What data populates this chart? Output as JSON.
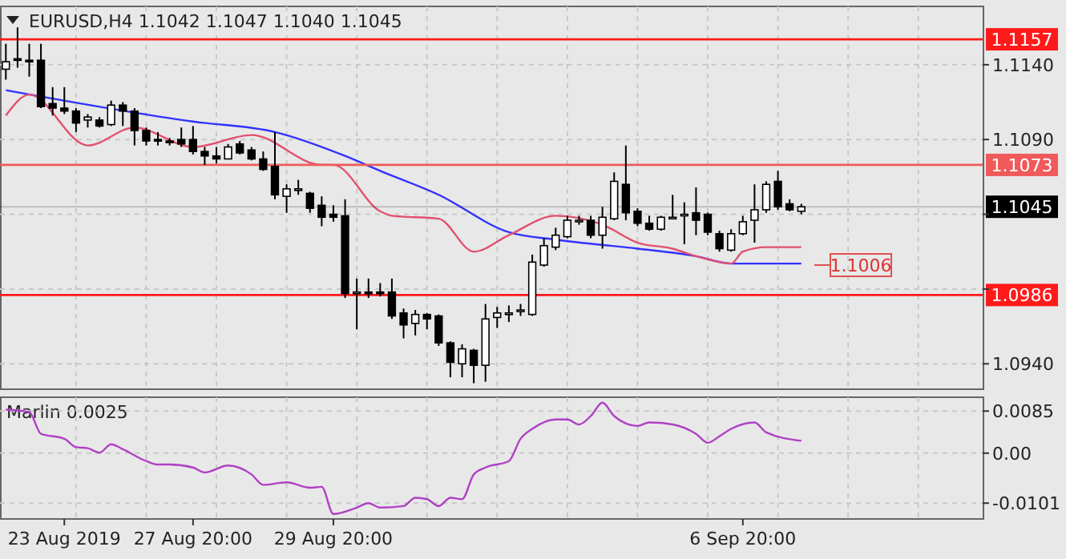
{
  "chart_data": [
    {
      "type": "candlestick",
      "title": "EURUSD,H4 1.1042 1.1047 1.1040 1.1045",
      "tick_labels": "y",
      "grid": true,
      "categories": [
        null,
        null,
        null,
        null,
        null,
        null,
        null,
        null,
        null,
        null,
        null,
        null,
        null,
        null,
        null,
        null,
        null,
        null,
        null,
        null,
        null,
        null,
        null,
        null,
        null,
        null,
        null,
        null,
        null,
        null,
        null,
        null,
        null,
        null,
        null,
        null,
        null,
        null,
        null,
        null,
        null,
        null,
        null,
        null,
        null,
        null,
        null,
        null,
        null,
        null,
        null,
        null,
        null,
        null,
        null,
        null,
        null,
        null,
        null,
        null,
        null,
        null,
        null,
        null,
        null,
        null,
        null,
        null,
        null,
        null,
        null,
        null,
        null,
        null,
        null,
        null,
        null,
        null,
        null,
        null,
        null,
        null,
        null,
        null
      ],
      "ylim": [
        1.0923,
        1.1179
      ],
      "yticks": [
        {
          "value": 1.094,
          "label": "1.0940"
        },
        {
          "value": 1.099,
          "label": null
        },
        {
          "value": 1.104,
          "label": null
        },
        {
          "value": 1.109,
          "label": "1.1090"
        },
        {
          "value": 1.114,
          "label": "1.1140"
        }
      ],
      "ohlc": [
        [
          1.1137,
          1.1154,
          1.113,
          1.1142
        ],
        [
          1.1144,
          1.1165,
          1.1138,
          1.1143
        ],
        [
          1.1143,
          1.1154,
          1.1132,
          1.1142
        ],
        [
          1.1143,
          1.1154,
          1.1111,
          1.1112
        ],
        [
          1.1114,
          1.1125,
          1.1106,
          1.1111
        ],
        [
          1.1111,
          1.1125,
          1.1107,
          1.1109
        ],
        [
          1.1109,
          1.1111,
          1.1095,
          1.1101
        ],
        [
          1.1103,
          1.1107,
          1.1098,
          1.1105
        ],
        [
          1.1103,
          1.1105,
          1.1098,
          1.1099
        ],
        [
          1.11,
          1.1116,
          1.1099,
          1.1113
        ],
        [
          1.1113,
          1.1115,
          1.1099,
          1.1109
        ],
        [
          1.1109,
          1.1111,
          1.1086,
          1.1096
        ],
        [
          1.1096,
          1.1098,
          1.1086,
          1.1089
        ],
        [
          1.109,
          1.1095,
          1.1086,
          1.1089
        ],
        [
          1.1089,
          1.1091,
          1.1086,
          1.1088
        ],
        [
          1.109,
          1.1098,
          1.1085,
          1.1087
        ],
        [
          1.109,
          1.1099,
          1.108,
          1.1082
        ],
        [
          1.1082,
          1.1085,
          1.1073,
          1.1079
        ],
        [
          1.1079,
          1.1085,
          1.1074,
          1.1077
        ],
        [
          1.1077,
          1.1087,
          1.1077,
          1.1085
        ],
        [
          1.1087,
          1.1089,
          1.108,
          1.1081
        ],
        [
          1.1083,
          1.1085,
          1.1076,
          1.1077
        ],
        [
          1.1077,
          1.1082,
          1.1069,
          1.107
        ],
        [
          1.1072,
          1.1095,
          1.105,
          1.1053
        ],
        [
          1.1052,
          1.106,
          1.1041,
          1.1057
        ],
        [
          1.1057,
          1.1063,
          1.1053,
          1.1057
        ],
        [
          1.1054,
          1.1055,
          1.1041,
          1.1044
        ],
        [
          1.1046,
          1.1052,
          1.1032,
          1.1038
        ],
        [
          1.104,
          1.1046,
          1.1035,
          1.1038
        ],
        [
          1.1039,
          1.105,
          1.0984,
          1.0987
        ],
        [
          1.0988,
          1.0997,
          1.0963,
          1.0988
        ],
        [
          1.0988,
          1.0997,
          1.0984,
          1.0987
        ],
        [
          1.0988,
          1.0994,
          1.0985,
          1.0987
        ],
        [
          1.0988,
          1.0997,
          1.097,
          1.0972
        ],
        [
          1.0974,
          1.0977,
          1.0957,
          1.0966
        ],
        [
          1.0967,
          1.0976,
          1.0959,
          1.0973
        ],
        [
          1.0973,
          1.0974,
          1.0963,
          1.097
        ],
        [
          1.0972,
          1.0973,
          1.0952,
          1.0954
        ],
        [
          1.0954,
          1.0955,
          1.0931,
          1.0941
        ],
        [
          1.094,
          1.0953,
          1.0931,
          1.095
        ],
        [
          1.0949,
          1.095,
          1.0927,
          1.0939
        ],
        [
          1.0939,
          1.098,
          1.0928,
          1.097
        ],
        [
          1.0971,
          1.0978,
          1.0964,
          1.0974
        ],
        [
          1.0974,
          1.0979,
          1.0968,
          1.0974
        ],
        [
          1.0975,
          1.098,
          1.0972,
          1.0976
        ],
        [
          1.0973,
          1.1013,
          1.0972,
          1.1008
        ],
        [
          1.1006,
          1.1024,
          1.1005,
          1.1019
        ],
        [
          1.1018,
          1.1031,
          1.1016,
          1.1026
        ],
        [
          1.1025,
          1.1039,
          1.1024,
          1.1036
        ],
        [
          1.1035,
          1.1039,
          1.1033,
          1.1036
        ],
        [
          1.1036,
          1.1039,
          1.1024,
          1.1026
        ],
        [
          1.1026,
          1.1045,
          1.1017,
          1.1038
        ],
        [
          1.1037,
          1.1068,
          1.1036,
          1.1062
        ],
        [
          1.106,
          1.1086,
          1.1036,
          1.1041
        ],
        [
          1.1042,
          1.1044,
          1.1032,
          1.1034
        ],
        [
          1.1034,
          1.1039,
          1.1029,
          1.103
        ],
        [
          1.103,
          1.1039,
          1.1029,
          1.1038
        ],
        [
          1.1038,
          1.1053,
          1.1037,
          1.1038
        ],
        [
          1.104,
          1.1048,
          1.102,
          1.104
        ],
        [
          1.1041,
          1.1058,
          1.1026,
          1.1036
        ],
        [
          1.104,
          1.1041,
          1.1026,
          1.1028
        ],
        [
          1.1027,
          1.1029,
          1.1015,
          1.1017
        ],
        [
          1.1016,
          1.103,
          1.1015,
          1.1027
        ],
        [
          1.1027,
          1.1039,
          1.1026,
          1.1035
        ],
        [
          1.1036,
          1.106,
          1.1021,
          1.1043
        ],
        [
          1.1043,
          1.1062,
          1.1041,
          1.106
        ],
        [
          1.1062,
          1.1069,
          1.1043,
          1.1045
        ],
        [
          1.1047,
          1.105,
          1.1042,
          1.1043
        ],
        [
          1.1042,
          1.1047,
          1.104,
          1.1045
        ],
        null,
        null,
        null,
        null,
        null,
        null,
        null,
        null,
        null,
        null,
        null,
        null,
        null,
        null,
        null
      ],
      "series": [
        {
          "type": "line",
          "color": "#3232ff",
          "values": [
            1.1123,
            null,
            null,
            null,
            null,
            null,
            null,
            null,
            null,
            null,
            null,
            null,
            null,
            null,
            null,
            null,
            1.1102,
            null,
            null,
            null,
            null,
            null,
            null,
            1.1095,
            null,
            null,
            null,
            null,
            null,
            1.1079,
            null,
            null,
            1.1069,
            null,
            null,
            null,
            null,
            1.1053,
            null,
            null,
            null,
            null,
            null,
            1.1028,
            null,
            null,
            null,
            1.1023,
            null,
            null,
            null,
            null,
            null,
            null,
            1.1017,
            null,
            null,
            null,
            null,
            1.1012,
            null,
            null,
            1.1007,
            null,
            null,
            null,
            null,
            null,
            1.1007,
            null,
            null,
            null,
            null,
            null,
            null,
            null,
            null,
            null,
            null,
            null,
            null,
            null,
            null,
            null
          ]
        },
        {
          "type": "line",
          "color": "#e2506e",
          "values": [
            1.1106,
            null,
            1.112,
            null,
            null,
            null,
            null,
            1.1086,
            null,
            null,
            null,
            1.1098,
            null,
            null,
            null,
            null,
            1.1085,
            null,
            null,
            null,
            null,
            1.1093,
            null,
            null,
            null,
            null,
            null,
            1.1073,
            1.1073,
            null,
            null,
            null,
            1.1042,
            1.1039,
            null,
            null,
            null,
            1.1037,
            null,
            null,
            1.1015,
            null,
            null,
            1.1026,
            null,
            null,
            null,
            1.1039,
            null,
            null,
            null,
            1.1033,
            null,
            null,
            1.1021,
            null,
            null,
            1.1017,
            null,
            1.1012,
            null,
            null,
            1.1007,
            1.1015,
            null,
            1.1018,
            null,
            null,
            1.1018,
            null,
            null,
            null,
            null,
            null,
            null,
            null,
            null,
            null,
            null,
            null,
            null,
            null,
            null,
            null
          ]
        }
      ],
      "ref_lines": [
        {
          "axis": "y",
          "value": 1.1157,
          "label": "1.1157",
          "color": "#ff1a1a"
        },
        {
          "axis": "y",
          "value": 1.1073,
          "label": "1.1073",
          "color": "#f05a5a"
        },
        {
          "axis": "y",
          "value": 1.0986,
          "label": "1.0986",
          "color": "#ff1a1a"
        },
        {
          "axis": "y",
          "value": 1.1045,
          "label": "1.1045",
          "color": "#000000"
        }
      ],
      "annotations": [
        {
          "text": "1.1006",
          "y": 1.1006
        }
      ]
    },
    {
      "type": "line",
      "title": "Marlin 0.0025",
      "grid": true,
      "categories": [
        null,
        null,
        null,
        null,
        null,
        "23 Aug 2019",
        null,
        null,
        null,
        null,
        null,
        null,
        null,
        null,
        null,
        null,
        "27 Aug 20:00",
        null,
        null,
        null,
        null,
        null,
        null,
        null,
        null,
        null,
        null,
        null,
        "29 Aug 20:00",
        null,
        null,
        null,
        null,
        null,
        null,
        null,
        null,
        null,
        null,
        null,
        null,
        null,
        null,
        null,
        null,
        null,
        null,
        null,
        null,
        null,
        null,
        null,
        null,
        null,
        null,
        null,
        null,
        null,
        null,
        null,
        null,
        null,
        null,
        "6 Sep 20:00",
        null,
        null,
        null,
        null,
        null,
        null,
        null,
        null,
        null,
        null,
        null,
        null,
        null,
        null,
        null,
        null,
        null,
        null,
        null,
        null
      ],
      "ylim": [
        -0.0133,
        0.0113
      ],
      "yticks": [
        {
          "value": -0.0101,
          "label": "-0.0101"
        },
        {
          "value": 0,
          "label": "0.00"
        },
        {
          "value": 0.0085,
          "label": "0.0085"
        }
      ],
      "series": [
        {
          "color": "#b041c4",
          "values": [
            0.0088,
            null,
            0.0083,
            0.0039,
            null,
            0.0029,
            0.0012,
            0.001,
            0.0001,
            0.0018,
            0.0008,
            null,
            -0.0016,
            -0.0023,
            -0.0023,
            null,
            -0.0029,
            -0.0039,
            null,
            -0.0025,
            null,
            -0.0043,
            -0.0064,
            null,
            -0.0059,
            null,
            -0.007,
            -0.0068,
            -0.0123,
            null,
            -0.011,
            -0.0101,
            -0.011,
            null,
            -0.0107,
            -0.009,
            -0.0093,
            -0.0107,
            -0.009,
            -0.0093,
            -0.0043,
            -0.0029,
            null,
            -0.0016,
            0.0029,
            0.0049,
            null,
            0.0068,
            0.0068,
            0.0058,
            0.0075,
            0.0102,
            0.0075,
            null,
            0.0055,
            0.0062,
            null,
            0.0058,
            null,
            0.0039,
            0.0021,
            0.0034,
            0.0049,
            null,
            0.0062,
            0.0042,
            null,
            null,
            0.0025,
            null,
            null,
            null,
            null,
            null,
            null,
            null,
            null,
            null,
            null,
            null,
            null,
            null,
            null,
            null
          ]
        }
      ]
    }
  ]
}
